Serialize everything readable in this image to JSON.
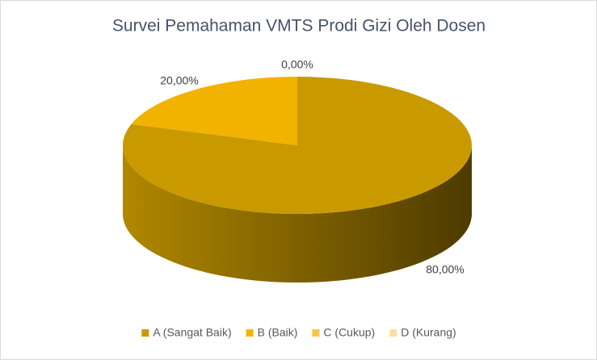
{
  "chart_data": {
    "type": "pie",
    "title": "Survei Pemahaman  VMTS Prodi Gizi Oleh Dosen",
    "categories": [
      "A (Sangat Baik)",
      "B (Baik)",
      "C (Cukup)",
      "D (Kurang)"
    ],
    "values": [
      80,
      20,
      0,
      0
    ],
    "value_labels": [
      "80,00%",
      "20,00%",
      "0,00%",
      null
    ],
    "colors": [
      "#c99a00",
      "#f2b300",
      "#f6c640",
      "#f9dfa0"
    ],
    "legend": "bottom"
  }
}
